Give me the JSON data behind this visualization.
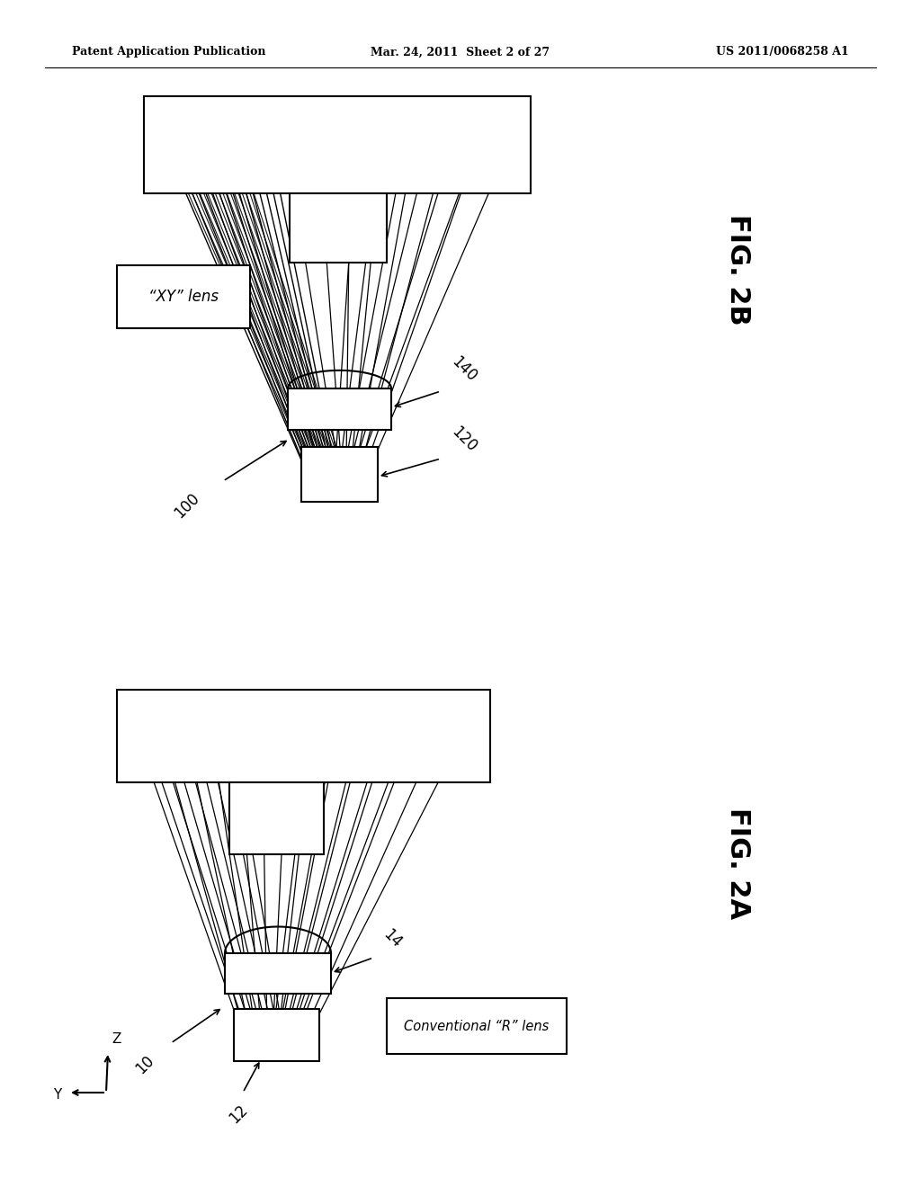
{
  "background_color": "#ffffff",
  "header_left": "Patent Application Publication",
  "header_center": "Mar. 24, 2011  Sheet 2 of 27",
  "header_right": "US 2011/0068258 A1",
  "fig2b": {
    "label": "FIG. 2B",
    "box_label": "\"XY\" lens",
    "ref_100": "100",
    "ref_120": "120",
    "ref_140": "140"
  },
  "fig2a": {
    "label": "FIG. 2A",
    "box_label": "Conventional “R” lens",
    "ref_10": "10",
    "ref_12": "12",
    "ref_14": "14"
  }
}
